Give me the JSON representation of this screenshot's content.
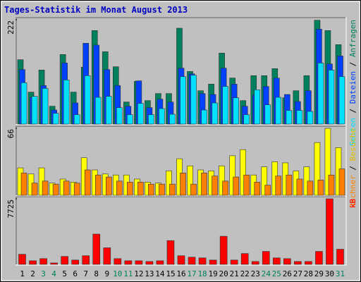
{
  "chart_data": [
    {
      "type": "bar",
      "title": "Tages-Statistik im Monat August 2013",
      "title_color": "#0000c0",
      "ylim": [
        0,
        222
      ],
      "yticks": [
        222
      ],
      "legend_separator": " / ",
      "series": [
        {
          "name": "Anfragen",
          "color": "#00805c",
          "values": [
            137,
            68,
            115,
            38,
            148,
            68,
            121,
            199,
            154,
            122,
            47,
            91,
            50,
            65,
            65,
            204,
            112,
            71,
            85,
            151,
            98,
            50,
            103,
            103,
            118,
            56,
            71,
            103,
            221,
            199,
            169
          ]
        },
        {
          "name": "Dateien",
          "color": "#0040ff",
          "values": [
            116,
            57,
            82,
            30,
            130,
            45,
            172,
            168,
            116,
            82,
            38,
            92,
            35,
            53,
            47,
            119,
            107,
            65,
            63,
            119,
            85,
            38,
            62,
            80,
            98,
            63,
            48,
            71,
            202,
            128,
            145
          ]
        },
        {
          "name": "Seiten",
          "color": "#00e0ff",
          "values": [
            88,
            59,
            76,
            23,
            94,
            20,
            103,
            57,
            59,
            35,
            20,
            44,
            20,
            33,
            21,
            101,
            104,
            30,
            45,
            80,
            56,
            20,
            73,
            41,
            57,
            29,
            29,
            27,
            130,
            115,
            101
          ]
        }
      ]
    },
    {
      "type": "bar",
      "ylim": [
        0,
        66
      ],
      "yticks": [
        66
      ],
      "legend_separator": " / ",
      "series": [
        {
          "name": "Besuche",
          "color": "#ffff00",
          "values": [
            27,
            21,
            27,
            12,
            16,
            13,
            37,
            25,
            21,
            20,
            20,
            16,
            13,
            12,
            24,
            36,
            29,
            25,
            24,
            29,
            39,
            45,
            20,
            28,
            33,
            32,
            24,
            28,
            52,
            66,
            47
          ]
        },
        {
          "name": "Rechner",
          "color": "#ff8000",
          "values": [
            22,
            12,
            14,
            11,
            14,
            12,
            25,
            20,
            18,
            14,
            13,
            13,
            11,
            11,
            11,
            22,
            11,
            22,
            19,
            14,
            18,
            20,
            13,
            10,
            19,
            20,
            16,
            14,
            15,
            20,
            26
          ]
        }
      ]
    },
    {
      "type": "bar",
      "ylim": [
        0,
        7725
      ],
      "yticks": [
        7725
      ],
      "categories": [
        "1",
        "2",
        "3",
        "4",
        "5",
        "6",
        "7",
        "8",
        "9",
        "10",
        "11",
        "12",
        "13",
        "14",
        "15",
        "16",
        "17",
        "18",
        "19",
        "20",
        "21",
        "22",
        "23",
        "24",
        "25",
        "26",
        "27",
        "28",
        "29",
        "30",
        "31"
      ],
      "category_colors": [
        "#000000",
        "#000000",
        "#00805c",
        "#00805c",
        "#000000",
        "#000000",
        "#000000",
        "#000000",
        "#000000",
        "#00805c",
        "#00805c",
        "#000000",
        "#000000",
        "#000000",
        "#000000",
        "#000000",
        "#00805c",
        "#00805c",
        "#000000",
        "#000000",
        "#000000",
        "#000000",
        "#000000",
        "#00805c",
        "#00805c",
        "#000000",
        "#000000",
        "#000000",
        "#000000",
        "#000000",
        "#00805c"
      ],
      "series": [
        {
          "name": "kB",
          "color": "#ff0000",
          "values": [
            1190,
            425,
            680,
            170,
            935,
            510,
            1020,
            3570,
            1955,
            680,
            425,
            425,
            340,
            425,
            2805,
            1020,
            850,
            765,
            510,
            3315,
            510,
            1275,
            340,
            1530,
            765,
            680,
            340,
            340,
            1530,
            7725,
            1785
          ]
        }
      ]
    }
  ]
}
